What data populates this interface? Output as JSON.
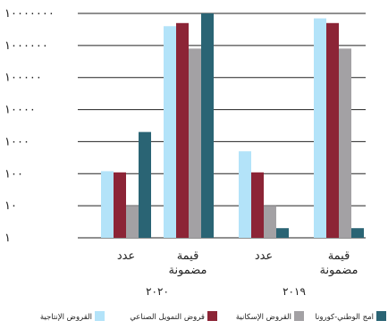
{
  "chart_data": {
    "type": "bar",
    "yscale": "log",
    "ylim": [
      1,
      10000000
    ],
    "y_ticks": [
      "١٠٠٠٠٠٠٠",
      "١٠٠٠٠٠٠",
      "١٠٠٠٠٠",
      "١٠٠٠٠",
      "١٠٠٠",
      "١٠٠",
      "١٠",
      "١"
    ],
    "grid": true,
    "legend_position": "bottom",
    "groups": [
      {
        "label": "٢٠٢٠",
        "categories": [
          {
            "label": [
              "عدد"
            ],
            "values": [
              120,
              110,
              10,
              2000
            ]
          },
          {
            "label": [
              "قيمة",
              "مضمونة"
            ],
            "values": [
              4000000,
              5000000,
              800000,
              10000000
            ]
          }
        ]
      },
      {
        "label": "٢٠١٩",
        "categories": [
          {
            "label": [
              "عدد"
            ],
            "values": [
              500,
              110,
              10,
              2
            ]
          },
          {
            "label": [
              "قيمة",
              "مضمونة"
            ],
            "values": [
              7000000,
              5000000,
              800000,
              2
            ]
          }
        ]
      }
    ],
    "series": [
      {
        "name": "القروض الإنتاجية",
        "color": "#b3e3f9"
      },
      {
        "name": "قروض التمويل الصناعي",
        "color": "#8c2436"
      },
      {
        "name": "القروض الإسكانية",
        "color": "#a3a1a4"
      },
      {
        "name": "امج الوطني-كورونا",
        "color": "#2a6474"
      }
    ]
  }
}
